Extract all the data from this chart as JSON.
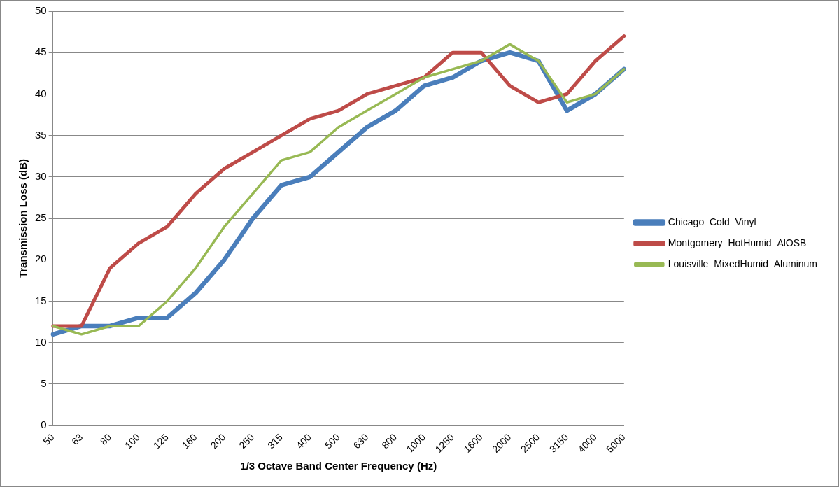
{
  "chart_data": {
    "type": "line",
    "xlabel": "1/3 Octave Band Center Frequency (Hz)",
    "ylabel": "Transmission Loss (dB)",
    "categories": [
      "50",
      "63",
      "80",
      "100",
      "125",
      "160",
      "200",
      "250",
      "315",
      "400",
      "500",
      "630",
      "800",
      "1000",
      "1250",
      "1600",
      "2000",
      "2500",
      "3150",
      "4000",
      "5000"
    ],
    "series": [
      {
        "name": "Chicago_Cold_Vinyl",
        "color": "#4a7ebb",
        "values": [
          11,
          12,
          12,
          13,
          13,
          16,
          20,
          25,
          29,
          30,
          33,
          36,
          38,
          41,
          42,
          44,
          45,
          44,
          38,
          40,
          43
        ]
      },
      {
        "name": "Montgomery_HotHumid_AlOSB",
        "color": "#be4b48",
        "values": [
          12,
          12,
          19,
          22,
          24,
          28,
          31,
          33,
          35,
          37,
          38,
          40,
          41,
          42,
          45,
          45,
          41,
          39,
          40,
          44,
          47
        ]
      },
      {
        "name": "Louisville_MixedHumid_Aluminum",
        "color": "#98b954",
        "values": [
          12,
          11,
          12,
          12,
          15,
          19,
          24,
          28,
          32,
          33,
          36,
          38,
          40,
          42,
          43,
          44,
          46,
          44,
          39,
          40,
          43
        ]
      }
    ],
    "ylim": [
      0,
      50
    ],
    "yticks": [
      0,
      5,
      10,
      15,
      20,
      25,
      30,
      35,
      40,
      45,
      50
    ],
    "grid": "y",
    "legend": "right",
    "marker": "none",
    "line_style": "solid"
  }
}
